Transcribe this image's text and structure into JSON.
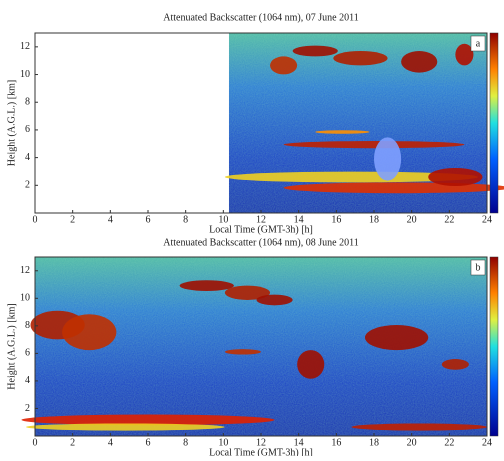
{
  "chart_data": [
    {
      "type": "heatmap",
      "title": "Attenuated Backscatter (1064 nm), 07 June 2011",
      "xlabel": "Local Time (GMT-3h) [h]",
      "ylabel": "Height (A.G.L.) [km]",
      "panel_label": "a",
      "xlim": [
        0,
        24
      ],
      "xticks": [
        0,
        2,
        4,
        6,
        8,
        10,
        12,
        14,
        16,
        18,
        20,
        22,
        24
      ],
      "ylim": [
        0,
        13
      ],
      "yticks": [
        2,
        4,
        6,
        8,
        10,
        12
      ],
      "data_xrange": [
        10.3,
        24
      ]
    },
    {
      "type": "heatmap",
      "title": "Attenuated Backscatter (1064 nm), 08 June 2011",
      "xlabel": "Local Time (GMT-3h) [h]",
      "ylabel": "Height (A.G.L.) [km]",
      "panel_label": "b",
      "xlim": [
        0,
        24
      ],
      "xticks": [
        0,
        2,
        4,
        6,
        8,
        10,
        12,
        14,
        16,
        18,
        20,
        22,
        24
      ],
      "ylim": [
        0,
        13
      ],
      "yticks": [
        2,
        4,
        6,
        8,
        10,
        12
      ],
      "data_xrange": [
        0,
        24
      ]
    }
  ]
}
